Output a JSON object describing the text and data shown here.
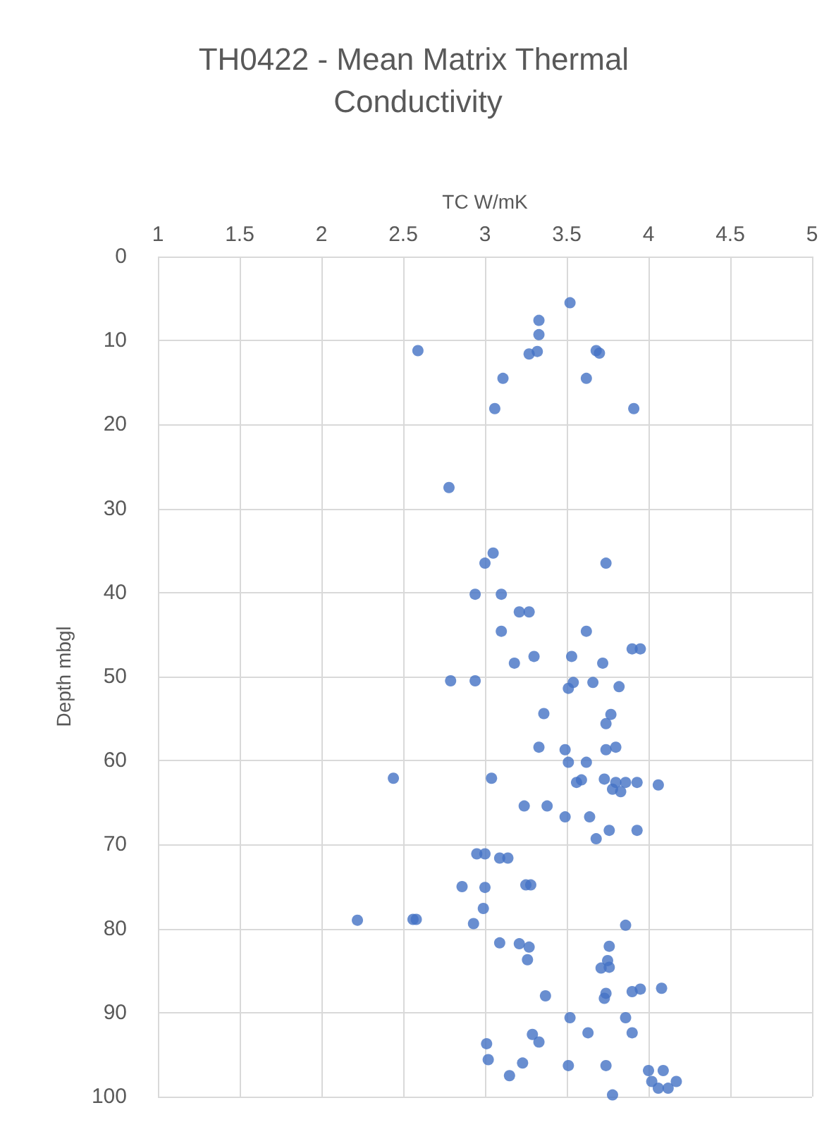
{
  "chart_data": {
    "type": "scatter",
    "title": "TH0422 - Mean Matrix Thermal Conductivity",
    "xlabel": "TC W/mK",
    "ylabel": "Depth mbgl",
    "xlim": [
      1,
      5
    ],
    "xticks": [
      1,
      1.5,
      2,
      2.5,
      3,
      3.5,
      4,
      4.5,
      5
    ],
    "ylim": [
      100,
      0
    ],
    "yticks": [
      0,
      10,
      20,
      30,
      40,
      50,
      60,
      70,
      80,
      90,
      100
    ],
    "grid": true,
    "marker": "circle",
    "series": [
      {
        "color": "#4472c4",
        "x": [
          3.52,
          3.33,
          3.33,
          2.59,
          3.27,
          3.32,
          3.68,
          3.7,
          3.11,
          3.62,
          3.06,
          3.91,
          2.78,
          3.05,
          3.0,
          3.74,
          2.94,
          3.1,
          3.21,
          3.27,
          3.1,
          3.62,
          3.9,
          3.95,
          3.3,
          3.53,
          3.72,
          3.18,
          2.79,
          2.94,
          3.54,
          3.66,
          3.82,
          3.51,
          3.36,
          3.77,
          3.74,
          3.33,
          3.49,
          3.74,
          3.8,
          3.51,
          3.62,
          2.44,
          3.04,
          3.56,
          3.59,
          3.73,
          3.8,
          3.86,
          3.78,
          3.83,
          3.93,
          4.06,
          3.24,
          3.38,
          3.49,
          3.64,
          3.76,
          3.93,
          3.68,
          2.95,
          3.0,
          3.09,
          3.14,
          2.86,
          3.0,
          3.25,
          3.28,
          2.99,
          2.22,
          2.56,
          2.58,
          2.93,
          3.86,
          3.76,
          3.21,
          3.09,
          3.27,
          3.75,
          3.76,
          3.71,
          3.26,
          3.37,
          3.73,
          3.74,
          3.9,
          3.95,
          4.08,
          3.52,
          3.86,
          3.29,
          3.63,
          3.9,
          3.01,
          3.33,
          3.02,
          3.23,
          3.51,
          3.74,
          4.0,
          4.09,
          3.15,
          4.02,
          4.06,
          4.12,
          4.17,
          3.78
        ],
        "values": [
          5.5,
          7.6,
          9.3,
          11.2,
          11.6,
          11.3,
          11.2,
          11.5,
          14.5,
          14.5,
          18.1,
          18.1,
          27.5,
          35.3,
          36.5,
          36.5,
          40.2,
          40.2,
          42.3,
          42.3,
          44.6,
          44.6,
          46.7,
          46.7,
          47.6,
          47.6,
          48.4,
          48.4,
          50.5,
          50.5,
          50.7,
          50.7,
          51.2,
          51.4,
          54.4,
          54.5,
          55.6,
          58.4,
          58.7,
          58.7,
          58.4,
          60.2,
          60.2,
          62.1,
          62.1,
          62.6,
          62.3,
          62.2,
          62.6,
          62.6,
          63.4,
          63.7,
          62.6,
          62.9,
          65.4,
          65.4,
          66.7,
          66.7,
          68.3,
          68.3,
          69.3,
          71.1,
          71.1,
          71.6,
          71.6,
          75.0,
          75.1,
          74.8,
          74.8,
          77.6,
          79.0,
          78.9,
          78.9,
          79.4,
          79.6,
          82.1,
          81.8,
          81.7,
          82.2,
          83.8,
          84.6,
          84.7,
          83.7,
          88.0,
          88.3,
          87.7,
          87.5,
          87.2,
          87.1,
          90.6,
          90.6,
          92.6,
          92.4,
          92.4,
          93.7,
          93.5,
          95.6,
          96.0,
          96.3,
          96.3,
          96.9,
          96.9,
          97.5,
          98.2,
          99.0,
          99.0,
          98.2,
          99.8
        ]
      }
    ]
  }
}
